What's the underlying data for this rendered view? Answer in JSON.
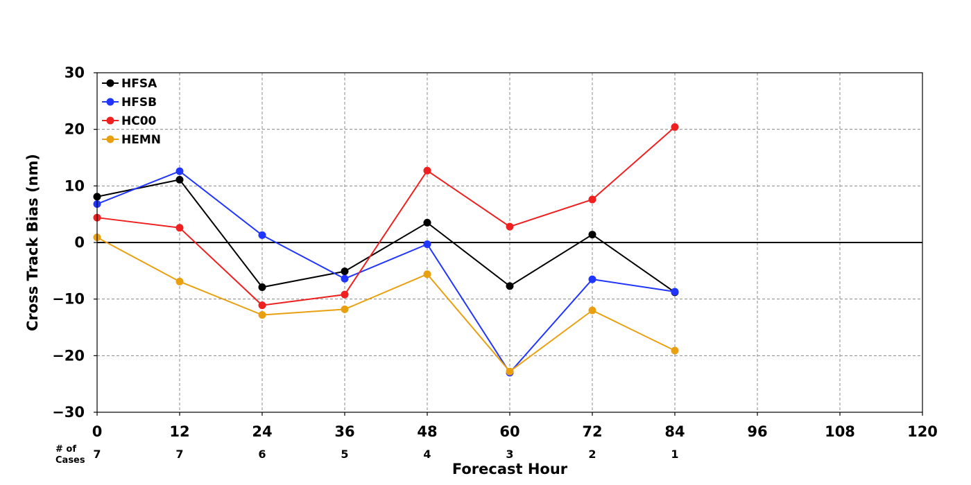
{
  "chart_data": {
    "type": "line",
    "title": "",
    "xlabel": "Forecast Hour",
    "ylabel": "Cross Track Bias (nm)",
    "xlim": [
      0,
      120
    ],
    "ylim": [
      -30,
      30
    ],
    "x_ticks": [
      0,
      12,
      24,
      36,
      48,
      60,
      72,
      84,
      96,
      108,
      120
    ],
    "y_ticks": [
      30,
      20,
      10,
      0,
      -10,
      -20,
      -30
    ],
    "y_tick_labels": [
      "30",
      "20",
      "10",
      "0",
      "−10",
      "−20",
      "−30"
    ],
    "grid": true,
    "zero_line": true,
    "legend_position": "top-left",
    "cases_label": [
      "# of",
      "Cases"
    ],
    "cases": [
      {
        "x": 0,
        "n": "7"
      },
      {
        "x": 12,
        "n": "7"
      },
      {
        "x": 24,
        "n": "6"
      },
      {
        "x": 36,
        "n": "5"
      },
      {
        "x": 48,
        "n": "4"
      },
      {
        "x": 60,
        "n": "3"
      },
      {
        "x": 72,
        "n": "2"
      },
      {
        "x": 84,
        "n": "1"
      }
    ],
    "x": [
      0,
      12,
      24,
      36,
      48,
      60,
      72,
      84
    ],
    "series": [
      {
        "name": "HFSA",
        "color": "#000000",
        "values": [
          8.1,
          11.1,
          -7.9,
          -5.1,
          3.5,
          -7.7,
          1.4,
          -8.8
        ]
      },
      {
        "name": "HFSB",
        "color": "#2035ff",
        "values": [
          6.8,
          12.6,
          1.3,
          -6.4,
          -0.3,
          -23.0,
          -6.5,
          -8.7
        ]
      },
      {
        "name": "HC00",
        "color": "#f02020",
        "values": [
          4.4,
          2.6,
          -11.1,
          -9.2,
          12.7,
          2.8,
          7.6,
          20.4
        ]
      },
      {
        "name": "HEMN",
        "color": "#e8a010",
        "values": [
          0.9,
          -6.9,
          -12.8,
          -11.8,
          -5.6,
          -22.8,
          -12.0,
          -19.1
        ]
      }
    ]
  }
}
